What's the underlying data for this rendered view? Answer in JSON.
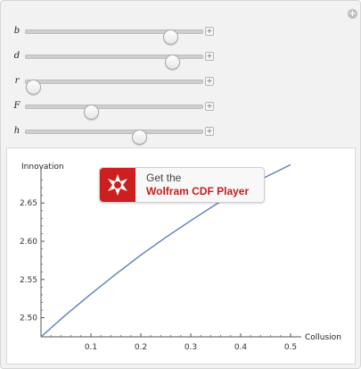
{
  "controls": {
    "sliders": [
      {
        "label": "b",
        "value": 0.82
      },
      {
        "label": "d",
        "value": 0.83
      },
      {
        "label": "r",
        "value": 0.04
      },
      {
        "label": "F",
        "value": 0.37
      },
      {
        "label": "h",
        "value": 0.64
      }
    ],
    "plus_glyph": "+"
  },
  "chart_data": {
    "type": "line",
    "xlabel": "Collusion",
    "ylabel": "Innovation",
    "xlim": [
      0,
      0.5
    ],
    "ylim": [
      2.475,
      2.69
    ],
    "xticks": [
      "0.1",
      "0.2",
      "0.3",
      "0.4",
      "0.5"
    ],
    "yticks": [
      "2.50",
      "2.55",
      "2.60",
      "2.65"
    ],
    "series": [
      {
        "color": "#5e81b5",
        "x": [
          0,
          0.05,
          0.1,
          0.15,
          0.2,
          0.25,
          0.3,
          0.35,
          0.4,
          0.45,
          0.5
        ],
        "y": [
          2.475,
          2.504,
          2.531,
          2.557,
          2.582,
          2.605,
          2.627,
          2.648,
          2.667,
          2.684,
          2.7
        ]
      }
    ]
  },
  "cdf_badge": {
    "line1": "Get the",
    "line2": "Wolfram CDF Player"
  }
}
